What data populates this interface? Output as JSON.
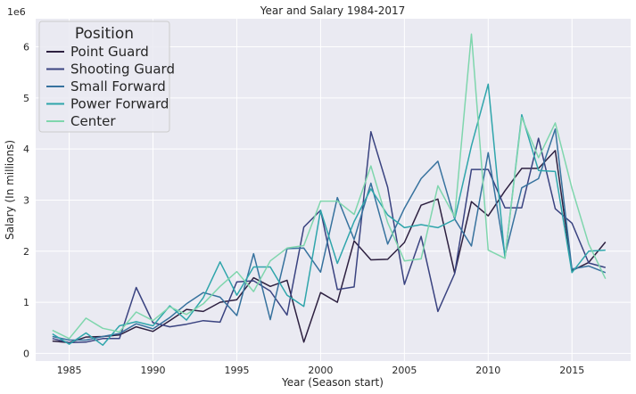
{
  "chart_data": {
    "type": "line",
    "title": "Year and Salary 1984-2017",
    "xlabel": "Year (Season start)",
    "ylabel": "Salary (In millions)",
    "y_offset_text": "1e6",
    "xlim": [
      1983,
      2018.5
    ],
    "ylim": [
      -150000,
      6550000
    ],
    "x_ticks": [
      1985,
      1990,
      1995,
      2000,
      2005,
      2010,
      2015
    ],
    "y_ticks": [
      0,
      1000000,
      2000000,
      3000000,
      4000000,
      5000000,
      6000000
    ],
    "y_tick_labels": [
      "0",
      "1",
      "2",
      "3",
      "4",
      "5",
      "6"
    ],
    "grid": true,
    "legend": {
      "title": "Position",
      "placement": "top-left"
    },
    "x": [
      1984,
      1985,
      1986,
      1987,
      1988,
      1989,
      1990,
      1991,
      1992,
      1993,
      1994,
      1995,
      1996,
      1997,
      1998,
      1999,
      2000,
      2001,
      2002,
      2003,
      2004,
      2005,
      2006,
      2007,
      2008,
      2009,
      2010,
      2011,
      2012,
      2013,
      2014,
      2015,
      2016,
      2017
    ],
    "series": [
      {
        "name": "Point Guard",
        "color": "#2d2040",
        "values": [
          240000,
          210000,
          320000,
          330000,
          360000,
          520000,
          430000,
          640000,
          860000,
          820000,
          1000000,
          1050000,
          1480000,
          1310000,
          1430000,
          220000,
          1190000,
          1000000,
          2200000,
          1830000,
          1840000,
          2170000,
          2900000,
          3020000,
          1570000,
          2970000,
          2690000,
          3180000,
          3620000,
          3620000,
          3970000,
          1620000,
          1780000,
          2180000
        ]
      },
      {
        "name": "Shooting Guard",
        "color": "#3a4380",
        "values": [
          290000,
          210000,
          220000,
          290000,
          290000,
          1290000,
          600000,
          520000,
          570000,
          640000,
          610000,
          1400000,
          1420000,
          1220000,
          750000,
          2470000,
          2800000,
          1250000,
          1300000,
          4340000,
          3250000,
          1350000,
          2290000,
          820000,
          1560000,
          3600000,
          3600000,
          2850000,
          2850000,
          4210000,
          2830000,
          2550000,
          1770000,
          1680000
        ]
      },
      {
        "name": "Small Forward",
        "color": "#37729e",
        "values": [
          330000,
          260000,
          260000,
          330000,
          390000,
          580000,
          480000,
          700000,
          970000,
          1190000,
          1100000,
          740000,
          1950000,
          660000,
          2050000,
          2060000,
          1590000,
          3050000,
          2230000,
          3330000,
          2140000,
          2840000,
          3420000,
          3760000,
          2630000,
          2100000,
          3930000,
          1920000,
          3240000,
          3420000,
          4390000,
          1650000,
          1710000,
          1580000
        ]
      },
      {
        "name": "Power Forward",
        "color": "#2fa5ab",
        "values": [
          380000,
          180000,
          400000,
          160000,
          540000,
          620000,
          540000,
          930000,
          650000,
          1090000,
          1790000,
          1140000,
          1690000,
          1690000,
          1140000,
          920000,
          2800000,
          1760000,
          2580000,
          3220000,
          2710000,
          2460000,
          2520000,
          2460000,
          2620000,
          4060000,
          5270000,
          1860000,
          4670000,
          3580000,
          3560000,
          1580000,
          2000000,
          2020000
        ]
      },
      {
        "name": "Center",
        "color": "#7fd6ad",
        "values": [
          450000,
          290000,
          690000,
          490000,
          420000,
          810000,
          640000,
          910000,
          760000,
          970000,
          1310000,
          1600000,
          1210000,
          1810000,
          2060000,
          2110000,
          2980000,
          2980000,
          2720000,
          3670000,
          2560000,
          1810000,
          1850000,
          3280000,
          2670000,
          6250000,
          2020000,
          1860000,
          4620000,
          3830000,
          4510000,
          3230000,
          2140000,
          1460000
        ]
      }
    ]
  }
}
